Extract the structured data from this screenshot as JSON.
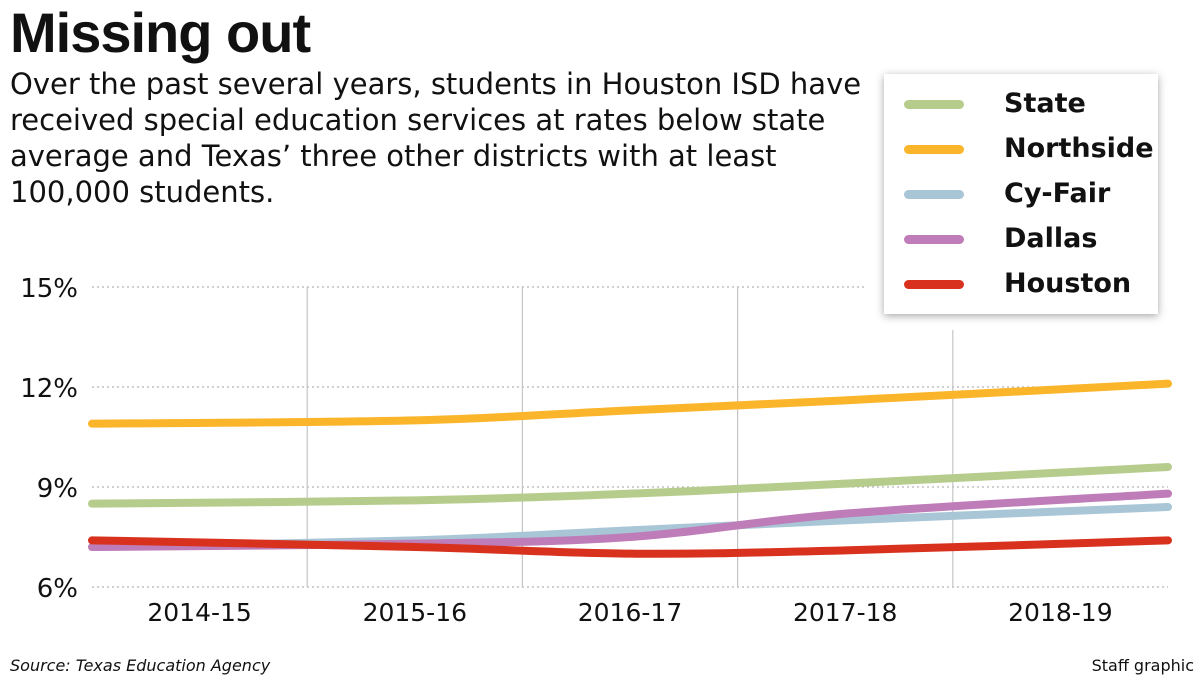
{
  "header": {
    "title": "Missing out",
    "subtitle": "Over the past several years, students in Houston ISD have received special education services at rates below state average and Texas’ three other districts with at least 100,000 students."
  },
  "footer": {
    "source": "Source: Texas Education Agency",
    "credit": "Staff graphic"
  },
  "chart_data": {
    "type": "line",
    "title": "Missing out",
    "xlabel": "",
    "ylabel": "",
    "categories": [
      "2014-15",
      "2015-16",
      "2016-17",
      "2017-18",
      "2018-19"
    ],
    "ylim": [
      6,
      15
    ],
    "yticks": [
      6,
      9,
      12,
      15
    ],
    "ytick_labels": [
      "6%",
      "9%",
      "12%",
      "15%"
    ],
    "grid": true,
    "legend_position": "top-right",
    "series": [
      {
        "name": "State",
        "color": "#b6cc8c",
        "values": [
          8.5,
          8.6,
          8.8,
          9.1,
          9.6
        ]
      },
      {
        "name": "Northside",
        "color": "#fbb52a",
        "values": [
          10.9,
          11.0,
          11.3,
          11.6,
          12.1
        ]
      },
      {
        "name": "Cy-Fair",
        "color": "#a9c6d6",
        "values": [
          7.2,
          7.4,
          7.7,
          8.0,
          8.4
        ]
      },
      {
        "name": "Dallas",
        "color": "#be7cb8",
        "values": [
          7.2,
          7.3,
          7.5,
          8.2,
          8.8
        ]
      },
      {
        "name": "Houston",
        "color": "#d8321f",
        "values": [
          7.4,
          7.2,
          7.0,
          7.1,
          7.4
        ]
      }
    ]
  }
}
